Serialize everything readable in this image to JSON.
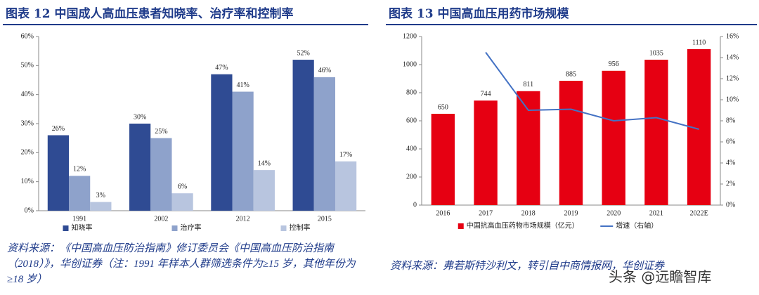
{
  "chart_data": [
    {
      "type": "bar",
      "title": "图表 12 中国成人高血压患者知晓率、治疗率和控制率",
      "categories": [
        "1991",
        "2002",
        "2012",
        "2015"
      ],
      "series": [
        {
          "name": "知晓率",
          "color": "#2f4b93",
          "values": [
            26,
            30,
            47,
            52
          ],
          "value_labels": [
            "26%",
            "30%",
            "47%",
            "52%"
          ]
        },
        {
          "name": "治疗率",
          "color": "#8ea2cb",
          "values": [
            12,
            25,
            41,
            46
          ],
          "value_labels": [
            "12%",
            "25%",
            "41%",
            "46%"
          ]
        },
        {
          "name": "控制率",
          "color": "#b8c5df",
          "values": [
            3,
            6,
            14,
            17
          ],
          "value_labels": [
            "3%",
            "6%",
            "14%",
            "17%"
          ]
        }
      ],
      "ylim": [
        0,
        60
      ],
      "yticks": [
        {
          "value": 0,
          "label": "0%"
        },
        {
          "value": 10,
          "label": "10%"
        },
        {
          "value": 20,
          "label": "20%"
        },
        {
          "value": 30,
          "label": "30%"
        },
        {
          "value": 40,
          "label": "40%"
        },
        {
          "value": 50,
          "label": "50%"
        },
        {
          "value": 60,
          "label": "60%"
        }
      ],
      "grid": false,
      "source": "资料来源：《中国高血压防治指南》修订委员会《中国高血压防治指南（2018）》，华创证券（注：1991 年样本人群筛选条件为≥15 岁，其他年份为≥18 岁）"
    },
    {
      "type": "bar",
      "title": "图表 13 中国高血压用药市场规模",
      "categories": [
        "2016",
        "2017",
        "2018",
        "2019",
        "2020",
        "2021",
        "2022E"
      ],
      "series": [
        {
          "name": "中国抗高血压药物市场规模（亿元）",
          "color": "#e60012",
          "values": [
            650,
            744,
            811,
            885,
            956,
            1035,
            1110
          ]
        },
        {
          "name": "增速（右轴）",
          "type": "line",
          "axis": "y2",
          "color": "#4472c4",
          "values": [
            null,
            14.5,
            9.0,
            9.1,
            8.0,
            8.3,
            7.2
          ]
        }
      ],
      "ylim": [
        0,
        1200
      ],
      "yticks": [
        0,
        200,
        400,
        600,
        800,
        1000,
        1200
      ],
      "y2lim": [
        0,
        16
      ],
      "y2ticks": [
        {
          "value": 0,
          "label": "0%"
        },
        {
          "value": 2,
          "label": "2%"
        },
        {
          "value": 4,
          "label": "4%"
        },
        {
          "value": 6,
          "label": "6%"
        },
        {
          "value": 8,
          "label": "8%"
        },
        {
          "value": 10,
          "label": "10%"
        },
        {
          "value": 12,
          "label": "12%"
        },
        {
          "value": 14,
          "label": "14%"
        },
        {
          "value": 16,
          "label": "16%"
        }
      ],
      "grid": false,
      "source": "资料来源：弗若斯特沙利文，转引自中商情报网，华创证券"
    }
  ],
  "watermark": "头条 @远瞻智库"
}
